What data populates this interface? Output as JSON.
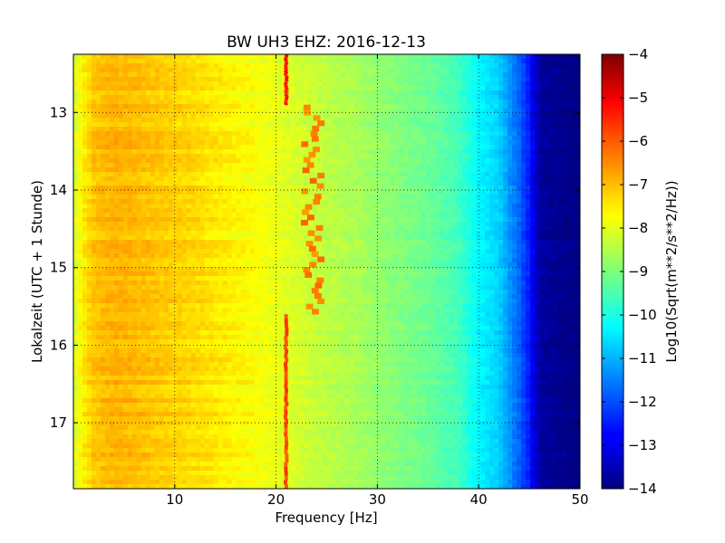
{
  "chart_data": {
    "type": "heatmap",
    "title": "BW UH3 EHZ: 2016-12-13",
    "xlabel": "Frequency [Hz]",
    "ylabel": "Lokalzeit (UTC + 1 Stunde)",
    "xlim": [
      0,
      50
    ],
    "ylim": [
      17.85,
      12.25
    ],
    "x_ticks": [
      10,
      20,
      30,
      40,
      50
    ],
    "y_ticks": [
      13,
      14,
      15,
      16,
      17
    ],
    "grid": true,
    "colormap": "jet",
    "colorbar": {
      "label": "Log10(Sqrt(m**2/s**2/Hz))",
      "range": [
        -14,
        -4
      ],
      "ticks": [
        -4,
        -5,
        -6,
        -7,
        -8,
        -9,
        -10,
        -11,
        -12,
        -13,
        -14
      ]
    },
    "spectrum_profile": {
      "frequency_hz": [
        0,
        1,
        2,
        4,
        8,
        12,
        16,
        18,
        25,
        28,
        30,
        35,
        38,
        40,
        42,
        44,
        45,
        46,
        50
      ],
      "log10_value": [
        -8.2,
        -7.6,
        -7.2,
        -7.0,
        -7.2,
        -7.4,
        -7.7,
        -7.8,
        -8.4,
        -8.6,
        -8.8,
        -9.2,
        -9.6,
        -10.3,
        -10.7,
        -11.8,
        -12.5,
        -13.7,
        -14.0
      ]
    },
    "line_features": [
      {
        "time_range": [
          12.25,
          12.9
        ],
        "frequency_hz": 21.0,
        "log10_value": -5.5
      },
      {
        "time_range": [
          12.9,
          15.6
        ],
        "frequency_hz_min": 22.8,
        "frequency_hz_max": 24.6,
        "log10_value": -6.5
      },
      {
        "time_range": [
          15.6,
          17.85
        ],
        "frequency_hz": 21.0,
        "log10_value": -6.0
      }
    ]
  }
}
